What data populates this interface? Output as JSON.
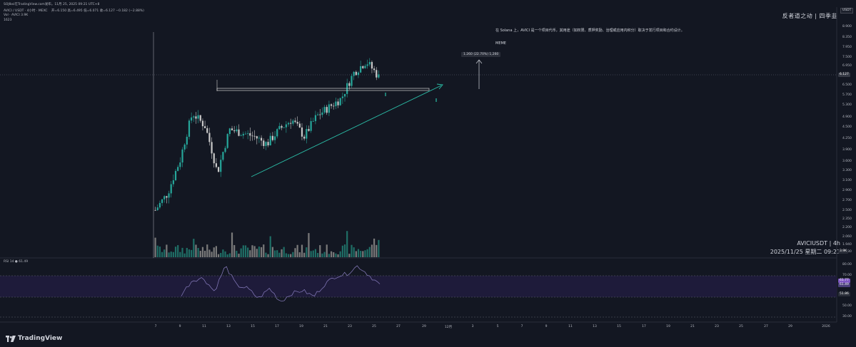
{
  "header": {
    "author_line": "SOJIbsi在TradingView.com发布，11月 25, 2025 09:21 UTC+8",
    "symbol_line": "AVICI / USDT · 4小时 · MEXC",
    "ohlc": "开=6.150 高=6.495 低=6.071 收=6.127 −0.182 (−2.88%)",
    "volume_line": "Vol · AVICI  3.9K",
    "extra_line": "1623"
  },
  "currency_label": "USDT",
  "watermark": "反者道之动 | 四季韭",
  "annotations": {
    "note1": "在 Solana 上，AVICI 是一个项目代币，其用途（如权限、质押奖励、治理或应用内积分）取决于发行项目和合约设计。",
    "note2": "MEME",
    "measure": "1.260 (22.70%) 1,260"
  },
  "symbol_label": "AVICIUSDT | 4h",
  "time_label": "2025/11/25 星期二 09:21",
  "price_axis": {
    "ticks": [
      "8.900",
      "8.350",
      "7.950",
      "7.500",
      "6.950",
      "6.500",
      "5.700",
      "5.300",
      "4.900",
      "4.500",
      "4.250",
      "3.900",
      "3.600",
      "3.300",
      "3.100",
      "2.900",
      "2.700",
      "2.500",
      "2.350",
      "2.200",
      "2.060",
      "1.940",
      "1.830"
    ],
    "last_price": "6.127",
    "volume_badge": "3.9K"
  },
  "rsi_panel": {
    "label": "RSI 14 ● 61.49",
    "ticks": [
      "80.00",
      "70.00",
      "61.49",
      "50.00",
      "40.00",
      "30.00"
    ],
    "badge_main": "61.77",
    "badge_second": "61.49",
    "badge_low": "51.86"
  },
  "time_axis": [
    "7",
    "9",
    "11",
    "13",
    "15",
    "17",
    "19",
    "21",
    "23",
    "25",
    "27",
    "29",
    "12月",
    "3",
    "5",
    "7",
    "9",
    "11",
    "13",
    "15",
    "17",
    "19",
    "21",
    "23",
    "25",
    "27",
    "29",
    "2026"
  ],
  "brand": "TradingView",
  "colors": {
    "up": "#26a69a",
    "down": "#c8c8c8",
    "trend": "#2bbfa8",
    "resistance": "#d0d0d0",
    "rsi_band": "#1e1b3a",
    "rsi_line": "#8b7fc2"
  },
  "chart_data": {
    "type": "candlestick",
    "series": [
      {
        "name": "AVICIUSDT",
        "close_path": [
          2.5,
          2.8,
          3.5,
          4.8,
          4.4,
          3.2,
          4.3,
          4.2,
          4.1,
          3.9,
          4.3,
          4.6,
          4.1,
          4.7,
          5.0,
          5.3,
          6.3,
          6.8,
          6.127
        ]
      },
      {
        "name": "RSI",
        "values": [
          52,
          66,
          68,
          55,
          80,
          61,
          58,
          48,
          58,
          45,
          53,
          56,
          50,
          62,
          70,
          72,
          80,
          71,
          61.49
        ]
      }
    ],
    "ylim": [
      1.83,
      8.9
    ]
  }
}
